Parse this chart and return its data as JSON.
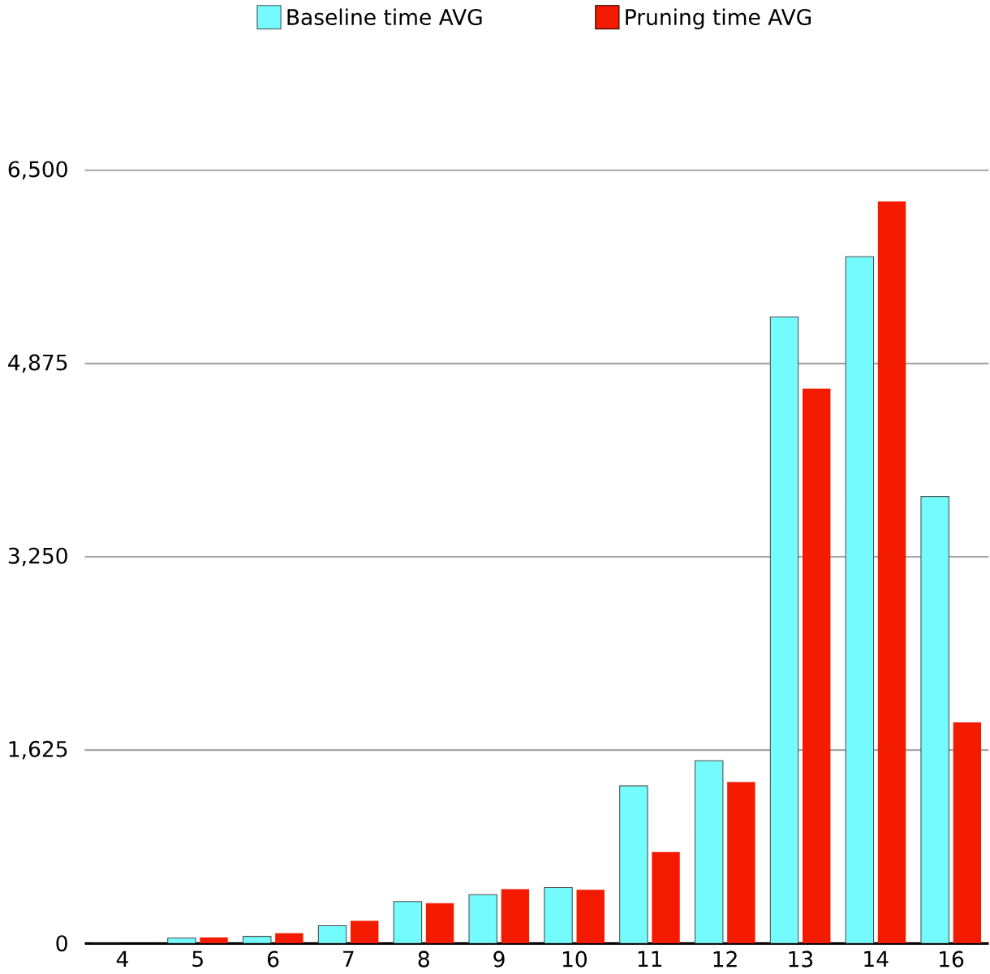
{
  "chart_data": {
    "type": "bar",
    "categories": [
      "4",
      "5",
      "6",
      "7",
      "8",
      "9",
      "10",
      "11",
      "12",
      "13",
      "14",
      "16"
    ],
    "series": [
      {
        "name": "Baseline time AVG",
        "color": "#74fbfd",
        "values": [
          0,
          45,
          59,
          149,
          352,
          410,
          469,
          1325,
          1536,
          5267,
          5773,
          3758
        ]
      },
      {
        "name": "Pruning time AVG",
        "color": "#f41a00",
        "values": [
          0,
          50,
          86,
          189,
          338,
          455,
          451,
          768,
          1357,
          4665,
          6238,
          1858
        ]
      }
    ],
    "ylim": [
      0,
      6500
    ],
    "yticks": [
      0,
      {
        "value": 1625,
        "label": "1,625"
      },
      {
        "value": 3250,
        "label": "3,250"
      },
      {
        "value": 4875,
        "label": "4,875"
      },
      {
        "value": 6500,
        "label": "6,500"
      }
    ],
    "grid": "y",
    "legend": "top"
  }
}
